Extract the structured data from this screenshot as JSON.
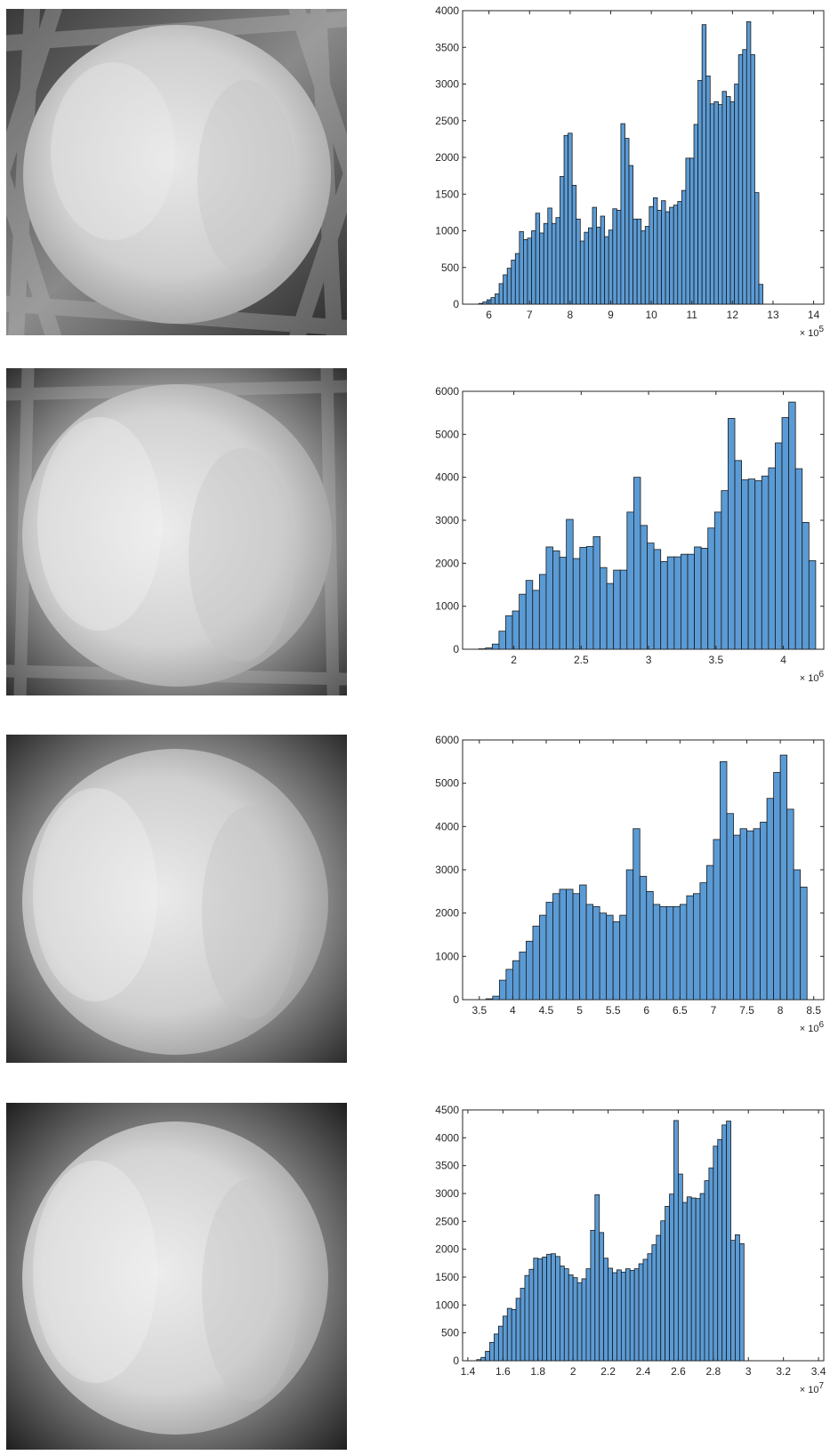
{
  "images": [
    {
      "name": "reconstruction-image-1",
      "description_colors": {
        "bg": "#1a1a1a",
        "disk": "#d0d0d0"
      },
      "blur": 2
    },
    {
      "name": "reconstruction-image-2",
      "description_colors": {
        "bg": "#1a1a1a",
        "disk": "#d2d2d2"
      },
      "blur": 4
    },
    {
      "name": "reconstruction-image-3",
      "description_colors": {
        "bg": "#1a1a1a",
        "disk": "#d2d2d2"
      },
      "blur": 7
    },
    {
      "name": "reconstruction-image-4",
      "description_colors": {
        "bg": "#1a1a1a",
        "disk": "#d2d2d2"
      },
      "blur": 12
    }
  ],
  "bar_color": "#5b9bd5",
  "bar_edge": "#1a1a1a",
  "chart_data": [
    {
      "type": "bar",
      "title": "",
      "xlabel": "",
      "ylabel": "",
      "xlim": [
        5.35,
        14.25
      ],
      "ylim": [
        0,
        4000
      ],
      "xticks": [
        6,
        7,
        8,
        9,
        10,
        11,
        12,
        13,
        14
      ],
      "xtick_labels": [
        "6",
        "7",
        "8",
        "9",
        "10",
        "11",
        "12",
        "13",
        "14"
      ],
      "yticks": [
        0,
        500,
        1000,
        1500,
        2000,
        2500,
        3000,
        3500,
        4000
      ],
      "ytick_labels": [
        "0",
        "500",
        "1000",
        "1500",
        "2000",
        "2500",
        "3000",
        "3500",
        "4000"
      ],
      "x_exponent_base": "× 10",
      "x_exponent_power": "5",
      "bin_start": 5.75,
      "bin_width": 0.1,
      "values": [
        10,
        30,
        60,
        90,
        140,
        280,
        400,
        490,
        600,
        690,
        990,
        880,
        900,
        1000,
        1240,
        970,
        1100,
        1310,
        1100,
        1180,
        1740,
        2300,
        2330,
        1620,
        1160,
        860,
        980,
        1040,
        1320,
        1050,
        1200,
        920,
        1010,
        1300,
        1280,
        2460,
        2260,
        1890,
        1160,
        1160,
        1000,
        1060,
        1330,
        1450,
        1280,
        1410,
        1260,
        1320,
        1350,
        1400,
        1550,
        1990,
        1990,
        2450,
        3050,
        3810,
        3110,
        2730,
        2760,
        2720,
        2900,
        2830,
        2760,
        3000,
        3400,
        3470,
        3850,
        3400,
        1520,
        270
      ]
    },
    {
      "type": "bar",
      "title": "",
      "xlabel": "",
      "ylabel": "",
      "xlim": [
        1.62,
        4.3
      ],
      "ylim": [
        0,
        6000
      ],
      "xticks": [
        2,
        2.5,
        3,
        3.5,
        4
      ],
      "xtick_labels": [
        "2",
        "2.5",
        "3",
        "3.5",
        "4"
      ],
      "yticks": [
        0,
        1000,
        2000,
        3000,
        4000,
        5000,
        6000
      ],
      "ytick_labels": [
        "0",
        "1000",
        "2000",
        "3000",
        "4000",
        "5000",
        "6000"
      ],
      "x_exponent_base": "× 10",
      "x_exponent_power": "6",
      "bin_start": 1.74,
      "bin_width": 0.05,
      "values": [
        10,
        30,
        120,
        420,
        780,
        890,
        1280,
        1600,
        1370,
        1740,
        2380,
        2290,
        2140,
        3020,
        2110,
        2370,
        2390,
        2620,
        1900,
        1530,
        1840,
        1840,
        3190,
        4000,
        2880,
        2470,
        2320,
        2040,
        2150,
        2150,
        2210,
        2210,
        2380,
        2350,
        2820,
        3190,
        3690,
        5370,
        4390,
        3940,
        3960,
        3920,
        4030,
        4220,
        4800,
        5390,
        5750,
        4200,
        2950,
        2060
      ]
    },
    {
      "type": "bar",
      "title": "",
      "xlabel": "",
      "ylabel": "",
      "xlim": [
        3.25,
        8.65
      ],
      "ylim": [
        0,
        6000
      ],
      "xticks": [
        3.5,
        4,
        4.5,
        5,
        5.5,
        6,
        6.5,
        7,
        7.5,
        8,
        8.5
      ],
      "xtick_labels": [
        "3.5",
        "4",
        "4.5",
        "5",
        "5.5",
        "6",
        "6.5",
        "7",
        "7.5",
        "8",
        "8.5"
      ],
      "yticks": [
        0,
        1000,
        2000,
        3000,
        4000,
        5000,
        6000
      ],
      "ytick_labels": [
        "0",
        "1000",
        "2000",
        "3000",
        "4000",
        "5000",
        "6000"
      ],
      "x_exponent_base": "× 10",
      "x_exponent_power": "6",
      "bin_start": 3.6,
      "bin_width": 0.1,
      "values": [
        20,
        80,
        450,
        700,
        900,
        1100,
        1350,
        1700,
        1950,
        2250,
        2450,
        2550,
        2550,
        2450,
        2650,
        2200,
        2150,
        2000,
        1950,
        1800,
        1950,
        3000,
        3950,
        2850,
        2500,
        2200,
        2150,
        2150,
        2150,
        2200,
        2400,
        2450,
        2700,
        3100,
        3700,
        5500,
        4300,
        3800,
        3950,
        3900,
        3950,
        4100,
        4650,
        5250,
        5650,
        4400,
        3000,
        2600
      ]
    },
    {
      "type": "bar",
      "title": "",
      "xlabel": "",
      "ylabel": "",
      "xlim": [
        1.37,
        3.43
      ],
      "ylim": [
        0,
        4500
      ],
      "xticks": [
        1.4,
        1.6,
        1.8,
        2,
        2.2,
        2.4,
        2.6,
        2.8,
        3,
        3.2,
        3.4
      ],
      "xtick_labels": [
        "1.4",
        "1.6",
        "1.8",
        "2",
        "2.2",
        "2.4",
        "2.6",
        "2.8",
        "3",
        "3.2",
        "3.4"
      ],
      "yticks": [
        0,
        500,
        1000,
        1500,
        2000,
        2500,
        3000,
        3500,
        4000,
        4500
      ],
      "ytick_labels": [
        "0",
        "500",
        "1000",
        "1500",
        "2000",
        "2500",
        "3000",
        "3500",
        "4000",
        "4500"
      ],
      "x_exponent_base": "× 10",
      "x_exponent_power": "7",
      "bin_start": 1.45,
      "bin_width": 0.025,
      "values": [
        20,
        60,
        170,
        330,
        480,
        620,
        800,
        940,
        920,
        1120,
        1300,
        1530,
        1640,
        1840,
        1830,
        1860,
        1910,
        1920,
        1870,
        1700,
        1650,
        1540,
        1490,
        1400,
        1470,
        1650,
        2340,
        2980,
        2300,
        1840,
        1660,
        1580,
        1630,
        1590,
        1650,
        1620,
        1650,
        1740,
        1820,
        1920,
        2080,
        2250,
        2510,
        2770,
        2990,
        4310,
        3350,
        2840,
        2940,
        2920,
        2910,
        3000,
        3230,
        3460,
        3850,
        3970,
        4230,
        4300,
        2160,
        2260,
        2100
      ]
    }
  ]
}
